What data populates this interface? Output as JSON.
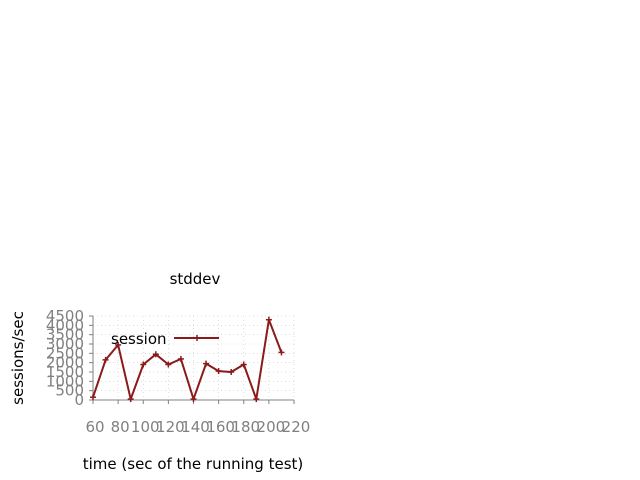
{
  "chart_data": {
    "type": "line",
    "title": "stddev",
    "xlabel": "time (sec of the running test)",
    "ylabel": "sessions/sec",
    "xlim": [
      60,
      220
    ],
    "ylim": [
      0,
      4500
    ],
    "xticks": [
      60,
      80,
      100,
      120,
      140,
      160,
      180,
      200,
      220
    ],
    "yticks": [
      0,
      500,
      1000,
      1500,
      2000,
      2500,
      3000,
      3500,
      4000,
      4500
    ],
    "grid": true,
    "legend_position": "top-left",
    "series": [
      {
        "name": "session",
        "color": "#8b1a1a",
        "marker": "plus",
        "x": [
          60,
          70,
          80,
          90,
          100,
          110,
          120,
          130,
          140,
          150,
          160,
          170,
          180,
          190,
          200,
          210
        ],
        "y": [
          150,
          2150,
          2950,
          50,
          1900,
          2450,
          1900,
          2200,
          50,
          1950,
          1550,
          1500,
          1900,
          50,
          4300,
          2550
        ]
      }
    ]
  }
}
